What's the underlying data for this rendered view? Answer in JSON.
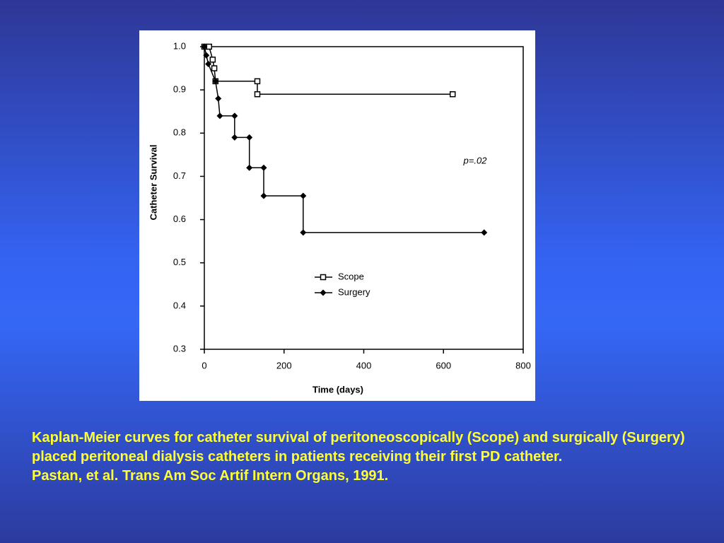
{
  "chart_data": {
    "type": "line",
    "x_label": "Time (days)",
    "y_label": "Catheter Survival",
    "annotation": "p=.02",
    "xlim": [
      0,
      800
    ],
    "xticks": [
      0,
      200,
      400,
      600,
      800
    ],
    "ylim": [
      0.3,
      1.0
    ],
    "yticks": [
      0.3,
      0.4,
      0.5,
      0.6,
      0.7,
      0.8,
      0.9,
      {
        "value": 1.0,
        "label": "1.0"
      }
    ],
    "series": [
      {
        "name": "Scope",
        "color": "#000000",
        "marker": "square",
        "x": [
          0,
          12,
          21,
          25,
          28,
          133,
          133,
          623
        ],
        "values": [
          1.0,
          1.0,
          0.97,
          0.95,
          0.92,
          0.92,
          0.89,
          0.89
        ]
      },
      {
        "name": "Surgery",
        "color": "#000000",
        "marker": "diamond",
        "x": [
          0,
          5,
          10,
          28,
          35,
          39,
          76,
          76,
          113,
          113,
          149,
          149,
          248,
          248,
          702
        ],
        "values": [
          1.0,
          0.98,
          0.96,
          0.92,
          0.88,
          0.84,
          0.84,
          0.79,
          0.79,
          0.72,
          0.72,
          0.655,
          0.655,
          0.57,
          0.57
        ]
      }
    ]
  },
  "caption": "Kaplan-Meier curves for catheter survival of peritoneoscopically (Scope) and surgically (Surgery) placed peritoneal dialysis catheters in patients receiving their first PD catheter.",
  "citation": "Pastan, et al. Trans Am Soc Artif Intern Organs, 1991."
}
